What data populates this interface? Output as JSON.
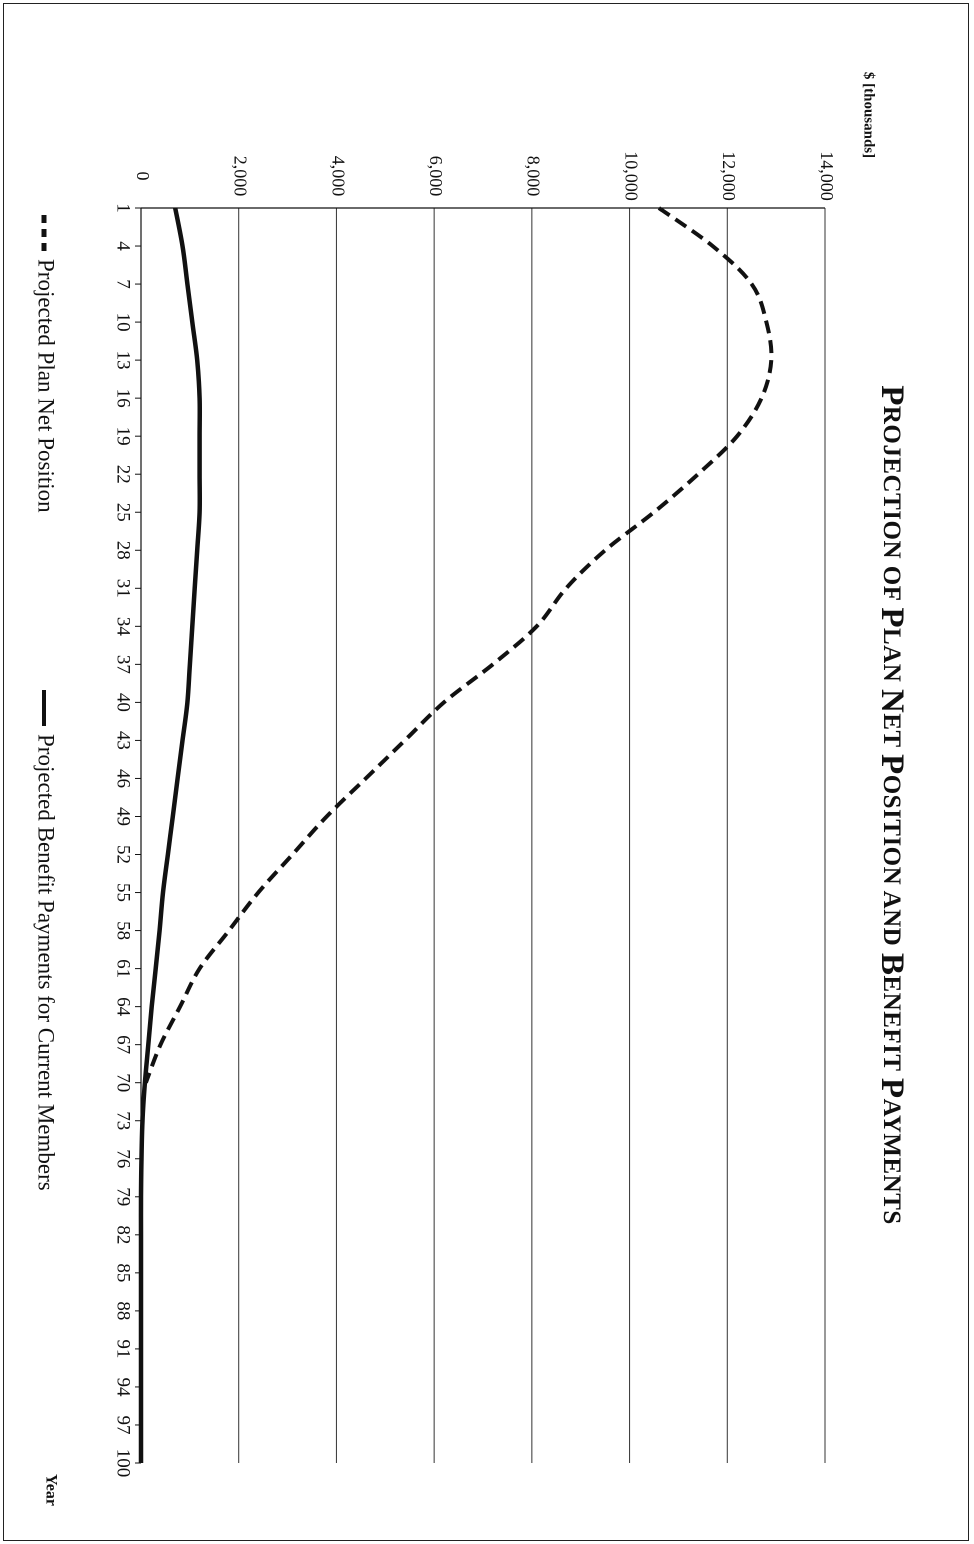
{
  "chart_data": {
    "type": "line",
    "title_parts": [
      {
        "cap": "P",
        "rest": "ROJECTION"
      },
      {
        "cap": "",
        "rest": "OF"
      },
      {
        "cap": "P",
        "rest": "LAN"
      },
      {
        "cap": "N",
        "rest": "ET"
      },
      {
        "cap": "P",
        "rest": "OSITION"
      },
      {
        "cap": "",
        "rest": "AND"
      },
      {
        "cap": "B",
        "rest": "ENEFIT"
      },
      {
        "cap": "P",
        "rest": "AYMENTS"
      }
    ],
    "title": "Projection of Plan Net Position and Benefit Payments",
    "ylabel": "$ [thousands]",
    "xlabel": "Year",
    "ylim": [
      0,
      14000
    ],
    "yticks": [
      0,
      2000,
      4000,
      6000,
      8000,
      10000,
      12000,
      14000
    ],
    "ytick_labels": [
      "0",
      "2,000",
      "4,000",
      "6,000",
      "8,000",
      "10,000",
      "12,000",
      "14,000"
    ],
    "xlim": [
      1,
      100
    ],
    "xtick_labels": [
      "1",
      "4",
      "7",
      "10",
      "13",
      "16",
      "19",
      "22",
      "25",
      "28",
      "31",
      "34",
      "37",
      "40",
      "43",
      "46",
      "49",
      "52",
      "55",
      "58",
      "61",
      "64",
      "67",
      "70",
      "73",
      "76",
      "79",
      "82",
      "85",
      "88",
      "91",
      "94",
      "97",
      "100"
    ],
    "grid": true,
    "orientation": "rotated-90",
    "legend_position": "bottom",
    "series": [
      {
        "name": "Projected Plan Net Position",
        "style": "dashed",
        "color": "#111111",
        "x": [
          1,
          4,
          7,
          10,
          13,
          16,
          19,
          22,
          25,
          28,
          31,
          34,
          37,
          40,
          43,
          46,
          49,
          52,
          55,
          58,
          61,
          64,
          67,
          70
        ],
        "values": [
          10600,
          11700,
          12500,
          12800,
          12900,
          12700,
          12200,
          11400,
          10500,
          9500,
          8700,
          8100,
          7200,
          6200,
          5400,
          4600,
          3800,
          3100,
          2400,
          1800,
          1200,
          800,
          400,
          100
        ]
      },
      {
        "name": "Projected Benefit Payments for Current Members",
        "style": "solid",
        "color": "#111111",
        "x": [
          1,
          4,
          7,
          10,
          13,
          16,
          19,
          22,
          25,
          28,
          31,
          34,
          37,
          40,
          43,
          46,
          49,
          52,
          55,
          58,
          61,
          64,
          67,
          70,
          73,
          76,
          79,
          82,
          85,
          88,
          91,
          94,
          97,
          100
        ],
        "values": [
          700,
          850,
          950,
          1050,
          1150,
          1200,
          1200,
          1200,
          1200,
          1150,
          1100,
          1050,
          1000,
          950,
          850,
          750,
          650,
          550,
          450,
          380,
          300,
          220,
          150,
          80,
          30,
          10,
          0,
          0,
          0,
          0,
          0,
          0,
          0,
          0
        ]
      }
    ]
  }
}
